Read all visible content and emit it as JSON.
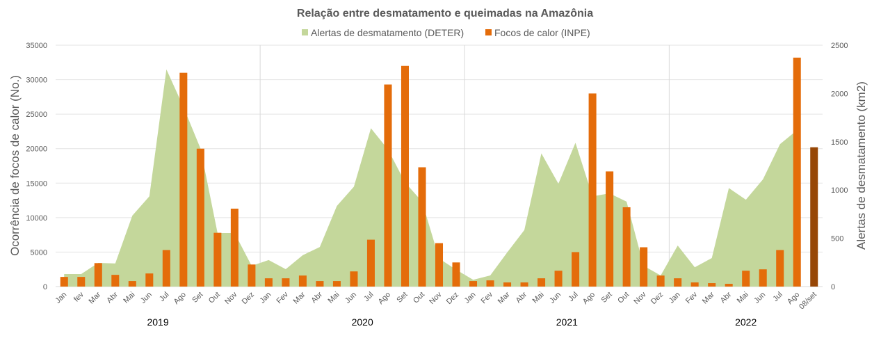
{
  "chart_data": {
    "type": "bar+area",
    "title": "Relação entre desmatamento e queimadas na Amazônia",
    "ylabel_left": "Ocorrência de focos de calor (No.)",
    "ylabel_right": "Alertas de desmatamento (km2)",
    "ylim_left": [
      0,
      35000
    ],
    "ylim_right": [
      0,
      2500
    ],
    "yticks_left": [
      "0",
      "5000",
      "10000",
      "15000",
      "20000",
      "25000",
      "30000",
      "35000"
    ],
    "yticks_right": [
      "0",
      "500",
      "1000",
      "1500",
      "2000",
      "2500"
    ],
    "grid": true,
    "legend_position": "top",
    "colors": {
      "area": "#c4d79b",
      "bar": "#e46c0a",
      "bar_partial": "#974706"
    },
    "groups": [
      {
        "label": "2019",
        "categories": [
          "Jan",
          "fev",
          "Mar",
          "Abr",
          "Mai",
          "Jun",
          "Jul",
          "Ago",
          "Set",
          "Out",
          "Nov",
          "Dez"
        ]
      },
      {
        "label": "2020",
        "categories": [
          "Jan",
          "Fev",
          "Mar",
          "Abr",
          "Mai",
          "Jun",
          "Jul",
          "Ago",
          "Set",
          "Out",
          "Nov",
          "Dez"
        ]
      },
      {
        "label": "2021",
        "categories": [
          "Jan",
          "Fev",
          "Mar",
          "Abr",
          "Mai",
          "Jun",
          "Jul",
          "Ago",
          "Set",
          "Out",
          "Nov",
          "Dez"
        ]
      },
      {
        "label": "2022",
        "categories": [
          "Jan",
          "Fev",
          "Mar",
          "Abr",
          "Mai",
          "Jun",
          "Jul",
          "Ago",
          "08/set"
        ]
      }
    ],
    "series": [
      {
        "name": "Alertas de desmatamento (DETER)",
        "type": "area",
        "axis": "right",
        "values": [
          130,
          130,
          245,
          240,
          735,
          935,
          2250,
          1860,
          1430,
          555,
          555,
          215,
          275,
          180,
          325,
          410,
          835,
          1035,
          1640,
          1420,
          1080,
          880,
          290,
          175,
          70,
          115,
          355,
          585,
          1380,
          1065,
          1490,
          935,
          965,
          880,
          215,
          115,
          425,
          200,
          295,
          1020,
          900,
          1110,
          1475,
          1620,
          null
        ]
      },
      {
        "name": "Focos de calor (INPE)",
        "type": "bar",
        "axis": "left",
        "values": [
          1400,
          1400,
          3400,
          1700,
          800,
          1900,
          5300,
          31000,
          20000,
          7800,
          11300,
          3200,
          1200,
          1200,
          1600,
          800,
          800,
          2200,
          6800,
          29300,
          32000,
          17300,
          6300,
          3500,
          800,
          900,
          600,
          600,
          1200,
          2300,
          5000,
          28000,
          16700,
          11500,
          5700,
          1600,
          1200,
          600,
          500,
          400,
          2300,
          2500,
          5300,
          33200,
          20200
        ]
      }
    ]
  }
}
